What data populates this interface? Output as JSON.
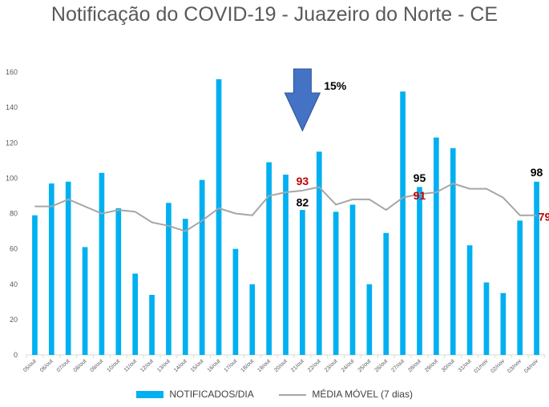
{
  "chart_data": {
    "type": "bar",
    "title": "Notificação do COVID-19 - Juazeiro do Norte - CE",
    "categories": [
      "05/out",
      "06/out",
      "07/out",
      "08/out",
      "09/out",
      "10/out",
      "11/out",
      "12/out",
      "13/out",
      "14/out",
      "15/out",
      "16/out",
      "17/out",
      "18/out",
      "19/out",
      "20/out",
      "21/out",
      "22/out",
      "23/out",
      "24/out",
      "25/out",
      "26/out",
      "27/out",
      "28/out",
      "29/out",
      "30/out",
      "31/out",
      "01/nov",
      "02/nov",
      "03/nov",
      "04/nov"
    ],
    "ylim": [
      0,
      160
    ],
    "yticks": [
      "0",
      "20",
      "40",
      "60",
      "80",
      "100",
      "120",
      "140",
      "160"
    ],
    "grid": false,
    "legend_position": "bottom",
    "series": [
      {
        "name": "NOTIFICADOS/DIA",
        "kind": "bar",
        "color": "#00B0F0",
        "values": [
          79,
          97,
          98,
          61,
          103,
          83,
          46,
          34,
          86,
          77,
          99,
          156,
          60,
          40,
          109,
          102,
          82,
          115,
          81,
          85,
          40,
          69,
          149,
          95,
          123,
          117,
          62,
          41,
          35,
          76,
          98
        ]
      },
      {
        "name": "MÉDIA MÓVEL (7 dias)",
        "kind": "line",
        "color": "#A6A6A6",
        "values": [
          84,
          84,
          88,
          84,
          80,
          82,
          81,
          75,
          73,
          70,
          76,
          83,
          80,
          79,
          90,
          92,
          93,
          95,
          85,
          88,
          88,
          82,
          89,
          91,
          92,
          97,
          94,
          94,
          89,
          79,
          79
        ]
      }
    ],
    "annotations": [
      {
        "text": "15%",
        "color": "#000000",
        "x": "22/out",
        "y": 150
      },
      {
        "text": "93",
        "color": "#C00000",
        "x": "21/out",
        "y": 96
      },
      {
        "text": "82",
        "color": "#000000",
        "x": "21/out",
        "y": 84
      },
      {
        "text": "95",
        "color": "#000000",
        "x": "28/out",
        "y": 98
      },
      {
        "text": "91",
        "color": "#C00000",
        "x": "28/out",
        "y": 88
      },
      {
        "text": "98",
        "color": "#000000",
        "x": "04/nov",
        "y": 101
      },
      {
        "text": "79",
        "color": "#C00000",
        "x": "04/nov",
        "y": 76
      }
    ],
    "arrow": {
      "x": "21/out",
      "y_top": 160,
      "y_bottom": 134,
      "color": "#4472C4"
    }
  }
}
